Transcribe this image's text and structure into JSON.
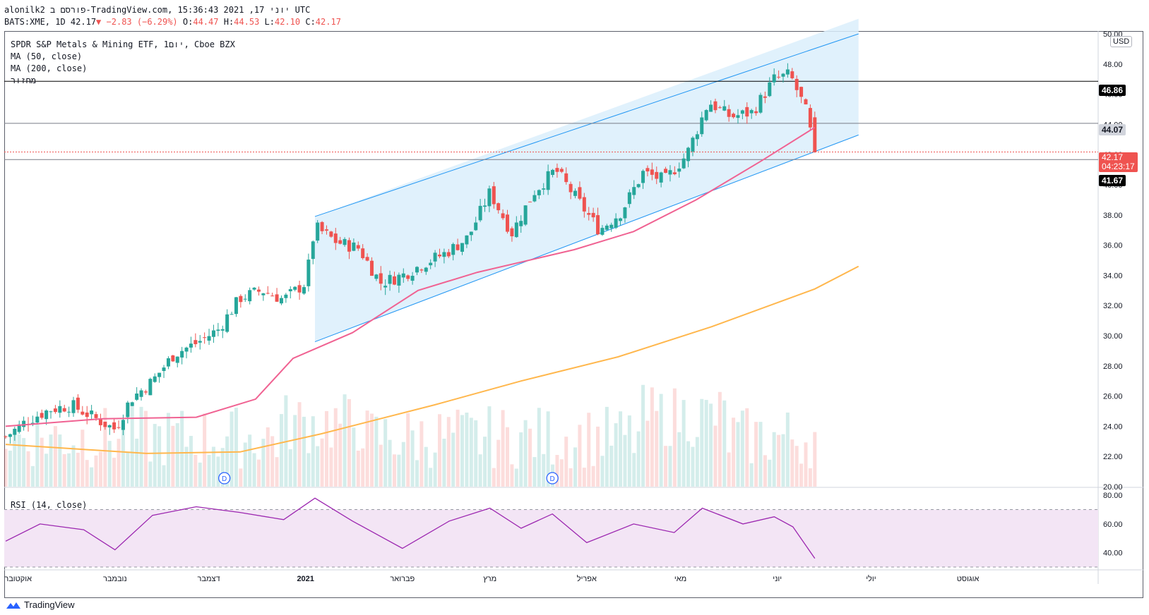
{
  "header": {
    "line1": "alonilk2 פורסם ב-TradingView.com, יוני 17, 2021 15:36:43 UTC",
    "symbol_prefix": "BATS:XME, 1D 42.17",
    "change": "−2.83 (−6.29%)",
    "o_label": "O:",
    "o_value": "44.47",
    "h_label": "H:",
    "h_value": "44.53",
    "l_label": "L:",
    "l_value": "42.10",
    "c_label": "C:",
    "c_value": "42.17"
  },
  "legend": {
    "instrument": "SPDR S&P Metals & Mining ETF, 1יום, Cboe BZX",
    "ma50": "MA (50, close)",
    "ma200": "MA (200, close)",
    "volume": "מחזור"
  },
  "currency": "USD",
  "rsi_label": "RSI (14, close)",
  "footer": {
    "brand": "TradingView"
  },
  "colors": {
    "up": "#26a69a",
    "down": "#ef5350",
    "ma50": "#f06292",
    "ma200": "#ffb74d",
    "channel_fill": "#dbeefb",
    "channel_line": "#2196f3",
    "rsi_line": "#9c27b0",
    "rsi_band": "#f3e5f5",
    "level_46_86": "#000000",
    "level_44_07": "#787b86",
    "level_41_67": "#787b86"
  },
  "price_badges": {
    "b1": "46.86",
    "b2": "44.07",
    "b3": "42.17",
    "b3_timer": "04:23:17",
    "b4": "41.67"
  },
  "events": {
    "dividend_marker": "D"
  },
  "chart_data": [
    {
      "type": "candlestick",
      "title": "SPDR S&P Metals & Mining ETF, 1יום, Cboe BZX",
      "ylim": [
        20,
        50
      ],
      "y_ticks": [
        "20.00",
        "22.00",
        "24.00",
        "26.00",
        "28.00",
        "30.00",
        "32.00",
        "34.00",
        "36.00",
        "38.00",
        "40.00",
        "42.00",
        "44.00",
        "46.00",
        "48.00",
        "50.00"
      ],
      "x_ticks": [
        "אוקטובר",
        "נובמבר",
        "דצמבר",
        "2021",
        "פברואר",
        "מרץ",
        "אפריל",
        "מאי",
        "יוני",
        "יולי",
        "אוגוסט"
      ],
      "close_path": [
        [
          "2020-10-01",
          23.3
        ],
        [
          "2020-10-08",
          24.4
        ],
        [
          "2020-10-15",
          25.1
        ],
        [
          "2020-10-22",
          25.4
        ],
        [
          "2020-10-29",
          24.6
        ],
        [
          "2020-11-05",
          23.8
        ],
        [
          "2020-11-10",
          25.8
        ],
        [
          "2020-11-17",
          27.0
        ],
        [
          "2020-11-24",
          28.8
        ],
        [
          "2020-12-01",
          29.5
        ],
        [
          "2020-12-08",
          30.4
        ],
        [
          "2020-12-15",
          32.5
        ],
        [
          "2020-12-22",
          33.0
        ],
        [
          "2020-12-29",
          32.4
        ],
        [
          "2021-01-05",
          33.5
        ],
        [
          "2021-01-08",
          37.2
        ],
        [
          "2021-01-15",
          36.2
        ],
        [
          "2021-01-22",
          35.8
        ],
        [
          "2021-01-29",
          33.5
        ],
        [
          "2021-02-05",
          34.0
        ],
        [
          "2021-02-12",
          34.8
        ],
        [
          "2021-02-19",
          35.5
        ],
        [
          "2021-02-26",
          36.5
        ],
        [
          "2021-03-05",
          39.5
        ],
        [
          "2021-03-12",
          36.8
        ],
        [
          "2021-03-19",
          39.5
        ],
        [
          "2021-03-26",
          41.0
        ],
        [
          "2021-04-02",
          39.0
        ],
        [
          "2021-04-09",
          37.0
        ],
        [
          "2021-04-16",
          38.2
        ],
        [
          "2021-04-23",
          40.8
        ],
        [
          "2021-04-30",
          40.3
        ],
        [
          "2021-05-07",
          42.0
        ],
        [
          "2021-05-14",
          45.5
        ],
        [
          "2021-05-21",
          44.5
        ],
        [
          "2021-05-28",
          44.8
        ],
        [
          "2021-06-04",
          47.0
        ],
        [
          "2021-06-09",
          47.3
        ],
        [
          "2021-06-14",
          45.0
        ],
        [
          "2021-06-17",
          42.17
        ]
      ],
      "ma50": [
        [
          "2020-10-01",
          24.0
        ],
        [
          "2020-11-01",
          24.5
        ],
        [
          "2020-12-01",
          24.6
        ],
        [
          "2020-12-20",
          25.8
        ],
        [
          "2021-01-01",
          28.5
        ],
        [
          "2021-01-20",
          30.2
        ],
        [
          "2021-02-10",
          33.0
        ],
        [
          "2021-03-01",
          34.2
        ],
        [
          "2021-04-01",
          35.7
        ],
        [
          "2021-04-20",
          36.9
        ],
        [
          "2021-05-10",
          39.0
        ],
        [
          "2021-05-31",
          41.6
        ],
        [
          "2021-06-17",
          43.8
        ]
      ],
      "ma200": [
        [
          "2020-10-01",
          22.8
        ],
        [
          "2020-11-15",
          22.2
        ],
        [
          "2020-12-15",
          22.3
        ],
        [
          "2021-01-10",
          23.5
        ],
        [
          "2021-02-15",
          25.4
        ],
        [
          "2021-03-15",
          27.0
        ],
        [
          "2021-04-15",
          28.6
        ],
        [
          "2021-05-15",
          30.6
        ],
        [
          "2021-06-17",
          33.1
        ],
        [
          "2021-07-01",
          34.6
        ]
      ],
      "horizontal_levels": [
        46.86,
        44.07,
        42.17,
        41.67
      ],
      "channel": {
        "upper": [
          [
            "2021-01-08",
            37.9
          ],
          [
            "2021-07-01",
            51.0
          ]
        ],
        "lower": [
          [
            "2021-01-08",
            29.6
          ],
          [
            "2021-07-01",
            43.3
          ]
        ]
      }
    },
    {
      "type": "bar",
      "title": "מחזור",
      "note": "volume, relative heights only"
    },
    {
      "type": "line",
      "title": "RSI (14, close)",
      "ylim": [
        30,
        85
      ],
      "y_ticks": [
        "40.00",
        "60.00",
        "80.00"
      ],
      "band": [
        30,
        70
      ],
      "values": [
        [
          "2020-10-01",
          48
        ],
        [
          "2020-10-12",
          60
        ],
        [
          "2020-10-26",
          56
        ],
        [
          "2020-11-05",
          42
        ],
        [
          "2020-11-17",
          66
        ],
        [
          "2020-12-01",
          72
        ],
        [
          "2020-12-15",
          68
        ],
        [
          "2020-12-29",
          63
        ],
        [
          "2021-01-08",
          78
        ],
        [
          "2021-01-20",
          62
        ],
        [
          "2021-02-05",
          43
        ],
        [
          "2021-02-20",
          62
        ],
        [
          "2021-03-05",
          71
        ],
        [
          "2021-03-15",
          57
        ],
        [
          "2021-03-25",
          67
        ],
        [
          "2021-04-05",
          47
        ],
        [
          "2021-04-20",
          60
        ],
        [
          "2021-05-03",
          54
        ],
        [
          "2021-05-12",
          71
        ],
        [
          "2021-05-25",
          60
        ],
        [
          "2021-06-04",
          65
        ],
        [
          "2021-06-10",
          58
        ],
        [
          "2021-06-17",
          36
        ]
      ]
    }
  ]
}
